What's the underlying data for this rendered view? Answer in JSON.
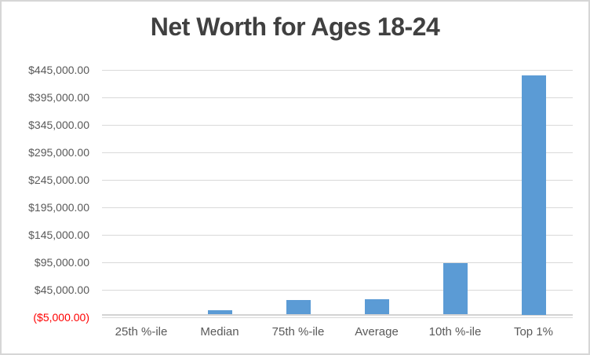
{
  "window": {
    "background": "#FFFFFF",
    "border_color": "#D6D6D6"
  },
  "chart_data": {
    "type": "bar",
    "title": "Net Worth for Ages 18-24",
    "categories": [
      "25th %-ile",
      "Median",
      "75th %-ile",
      "Average",
      "10th %-ile",
      "Top 1%"
    ],
    "values": [
      0,
      8000,
      26000,
      28000,
      94000,
      435000
    ],
    "xlabel": "",
    "ylabel": "",
    "ylim": [
      -5000,
      445000
    ],
    "ytick_step": 50000,
    "ytick_labels": [
      "$445,000.00",
      "$395,000.00",
      "$345,000.00",
      "$295,000.00",
      "$245,000.00",
      "$195,000.00",
      "$145,000.00",
      "$95,000.00",
      "$45,000.00",
      "($5,000.00)"
    ],
    "legend": "none",
    "grid": true,
    "colors": {
      "bar": "#5B9BD5",
      "title_text": "#404040",
      "axis_label_text": "#595959",
      "negative_tick_text": "#FF0000",
      "gridline": "#D9D9D9",
      "axis_line": "#D3D3D3"
    }
  }
}
